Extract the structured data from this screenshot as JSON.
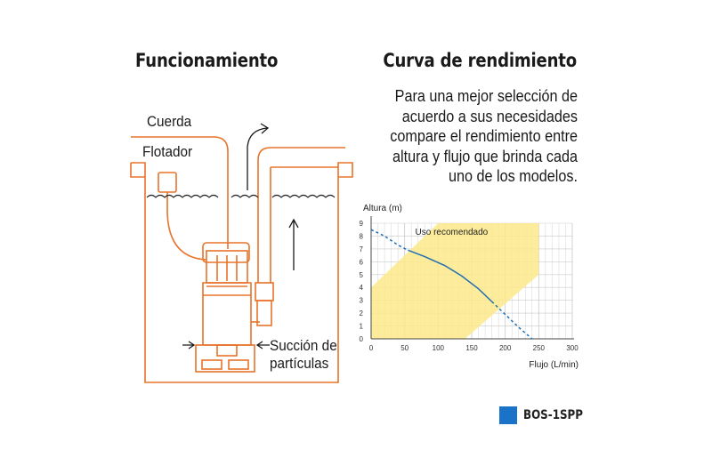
{
  "titles": {
    "left": "Funcionamiento",
    "right": "Curva de rendimiento"
  },
  "description": [
    "Para una mejor selección de",
    "acuerdo a sus necesidades",
    "compare el rendimiento entre",
    "altura y flujo que brinda cada",
    "uno de los modelos."
  ],
  "diagram_labels": {
    "cord": "Cuerda",
    "float": "Flotador",
    "suction_line1": "Succión de",
    "suction_line2": "partículas"
  },
  "colors": {
    "outline": "#e8732a",
    "curve": "#1f6fb2",
    "zone": "#fde98a",
    "grid": "#c9c9c9",
    "legend": "#1a73c8"
  },
  "chart_data": {
    "type": "line",
    "xlabel": "Flujo (L/min)",
    "ylabel": "Altura (m)",
    "xlim": [
      0,
      300
    ],
    "ylim": [
      0,
      9
    ],
    "x_ticks": [
      0,
      50,
      100,
      150,
      200,
      250,
      300
    ],
    "y_ticks": [
      0,
      1,
      2,
      3,
      4,
      5,
      6,
      7,
      8,
      9
    ],
    "grid": true,
    "zone": {
      "label": "Uso recomendado",
      "polygon": [
        [
          0,
          4
        ],
        [
          100,
          9
        ],
        [
          250,
          9
        ],
        [
          250,
          5
        ],
        [
          140,
          0
        ],
        [
          0,
          0
        ]
      ]
    },
    "series": [
      {
        "name": "BOS-1SPP",
        "solid": [
          [
            55,
            6.9
          ],
          [
            80,
            6.4
          ],
          [
            110,
            5.7
          ],
          [
            135,
            4.9
          ],
          [
            160,
            3.9
          ],
          [
            180,
            2.9
          ]
        ],
        "dashed_start": [
          [
            0,
            8.5
          ],
          [
            20,
            8.0
          ],
          [
            40,
            7.3
          ],
          [
            55,
            6.9
          ]
        ],
        "dashed_end": [
          [
            180,
            2.9
          ],
          [
            200,
            1.9
          ],
          [
            220,
            0.9
          ],
          [
            240,
            0
          ]
        ]
      }
    ],
    "legend": {
      "position": "bottom-right"
    }
  }
}
